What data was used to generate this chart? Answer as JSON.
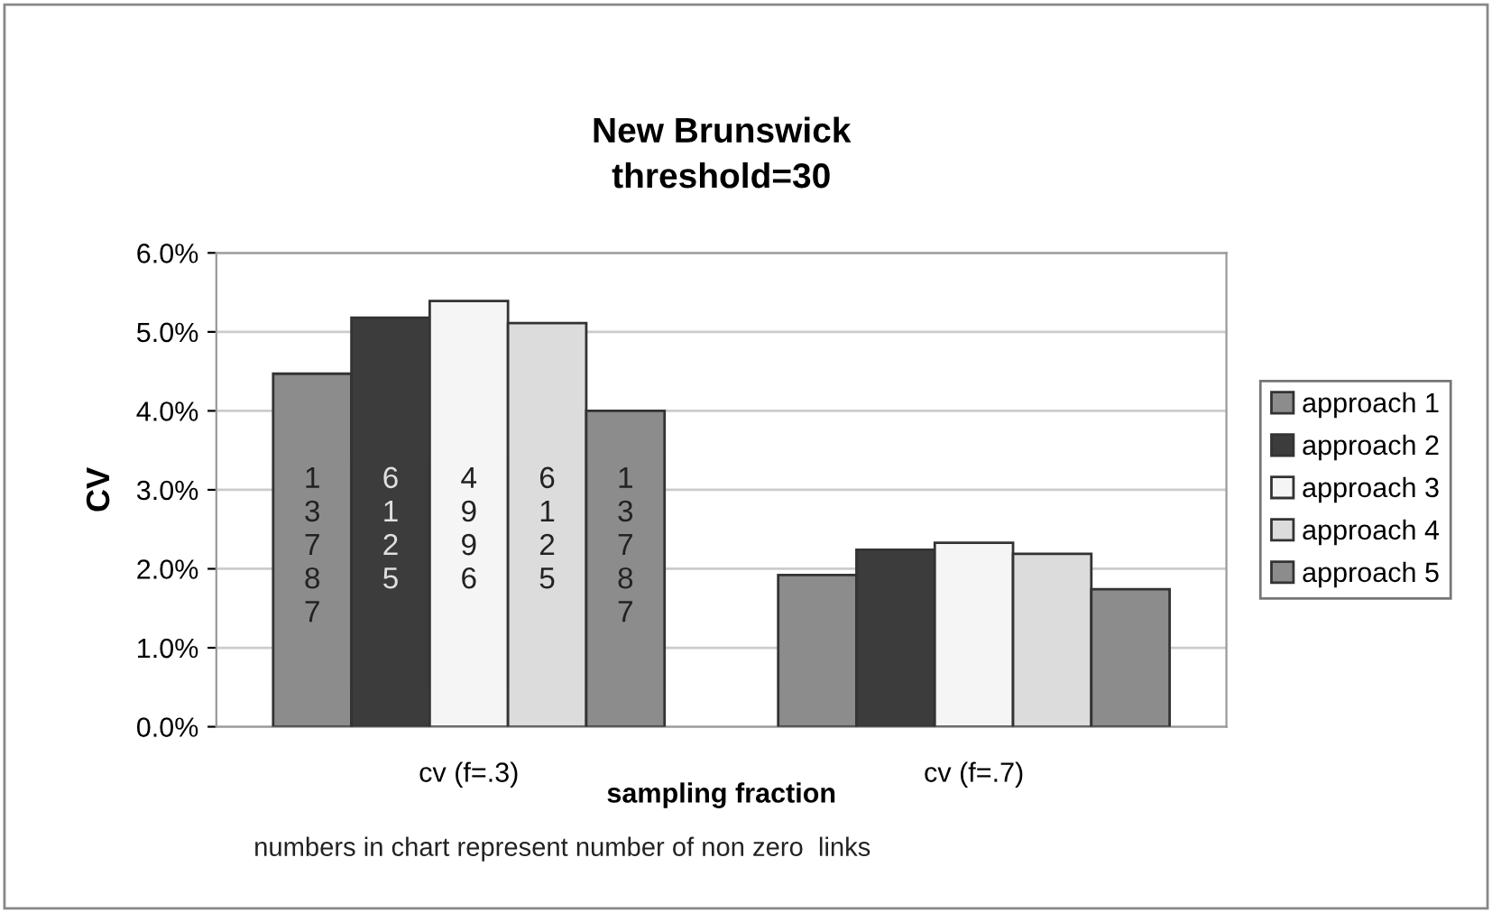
{
  "chart_data": {
    "type": "bar",
    "title": "New Brunswick\nthreshold=30",
    "xlabel": "sampling fraction",
    "ylabel": "CV",
    "categories": [
      "cv (f=.3)",
      "cv (f=.7)"
    ],
    "series": [
      {
        "name": "approach 1",
        "color": "#8c8c8c",
        "values": [
          4.47,
          1.92
        ]
      },
      {
        "name": "approach 2",
        "color": "#3c3c3c",
        "values": [
          5.18,
          2.24
        ]
      },
      {
        "name": "approach 3",
        "color": "#f5f5f5",
        "values": [
          5.39,
          2.33
        ]
      },
      {
        "name": "approach 4",
        "color": "#dcdcdc",
        "values": [
          5.11,
          2.19
        ]
      },
      {
        "name": "approach 5",
        "color": "#8c8c8c",
        "values": [
          4.0,
          1.74
        ]
      }
    ],
    "ylim": [
      0,
      6
    ],
    "yticks": [
      {
        "value": 0,
        "label": "0.0%"
      },
      {
        "value": 1,
        "label": "1.0%"
      },
      {
        "value": 2,
        "label": "2.0%"
      },
      {
        "value": 3,
        "label": "3.0%"
      },
      {
        "value": 4,
        "label": "4.0%"
      },
      {
        "value": 5,
        "label": "5.0%"
      },
      {
        "value": 6,
        "label": "6.0%"
      }
    ],
    "grid": "y",
    "legend": "right",
    "annotations": [
      "13787",
      "6125",
      "4996",
      "6125",
      "13787",
      "numbers in chart represent number of non zero  links"
    ]
  }
}
